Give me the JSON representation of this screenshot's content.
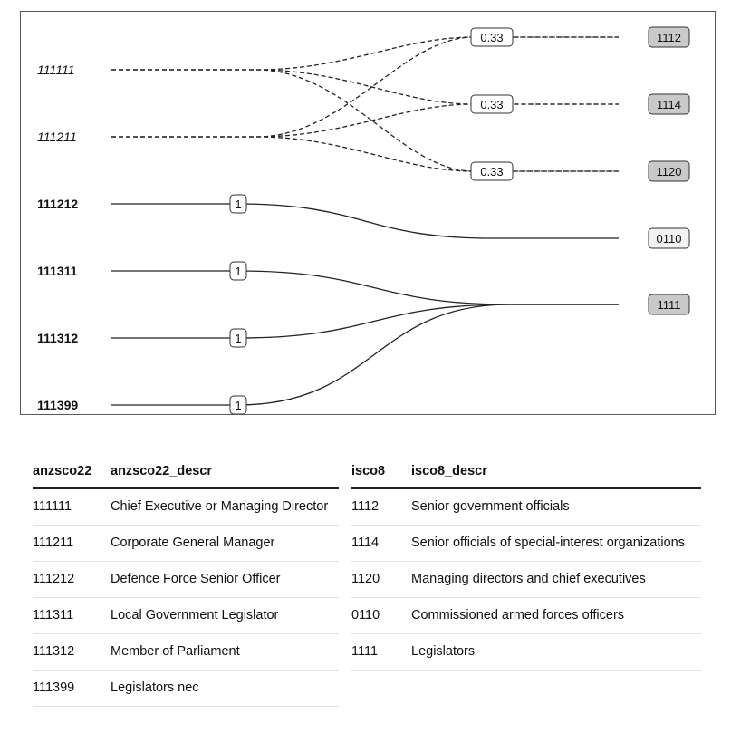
{
  "diagram": {
    "sources": [
      {
        "code": "111111",
        "style": "italic"
      },
      {
        "code": "111211",
        "style": "italic"
      },
      {
        "code": "111212",
        "style": "bold"
      },
      {
        "code": "111311",
        "style": "bold"
      },
      {
        "code": "111312",
        "style": "bold"
      },
      {
        "code": "111399",
        "style": "bold"
      }
    ],
    "targets": [
      {
        "code": "1112",
        "fill": "#c9c9c9"
      },
      {
        "code": "1114",
        "fill": "#c9c9c9"
      },
      {
        "code": "1120",
        "fill": "#c9c9c9"
      },
      {
        "code": "0110",
        "fill": "#f2f2f2"
      },
      {
        "code": "1111",
        "fill": "#c9c9c9"
      }
    ],
    "links": [
      {
        "source": "111111",
        "target": "1112",
        "weight": "0.33",
        "dashed": true
      },
      {
        "source": "111111",
        "target": "1114",
        "weight": "0.33",
        "dashed": true
      },
      {
        "source": "111111",
        "target": "1120",
        "weight": "0.33",
        "dashed": true
      },
      {
        "source": "111211",
        "target": "1112",
        "weight": "0.33",
        "dashed": true
      },
      {
        "source": "111211",
        "target": "1114",
        "weight": "0.33",
        "dashed": true
      },
      {
        "source": "111211",
        "target": "1120",
        "weight": "0.33",
        "dashed": true
      },
      {
        "source": "111212",
        "target": "0110",
        "weight": "1",
        "dashed": false
      },
      {
        "source": "111311",
        "target": "1111",
        "weight": "1",
        "dashed": false
      },
      {
        "source": "111312",
        "target": "1111",
        "weight": "1",
        "dashed": false
      },
      {
        "source": "111399",
        "target": "1111",
        "weight": "1",
        "dashed": false
      }
    ],
    "split_labels": [
      {
        "target": "1112",
        "text": "0.33"
      },
      {
        "target": "1114",
        "text": "0.33"
      },
      {
        "target": "1120",
        "text": "0.33"
      }
    ],
    "single_labels": [
      {
        "source": "111212",
        "text": "1"
      },
      {
        "source": "111311",
        "text": "1"
      },
      {
        "source": "111312",
        "text": "1"
      },
      {
        "source": "111399",
        "text": "1"
      }
    ]
  },
  "left_table": {
    "headers": [
      "anzsco22",
      "anzsco22_descr"
    ],
    "rows": [
      [
        "111111",
        "Chief Executive or Managing Director"
      ],
      [
        "111211",
        "Corporate General Manager"
      ],
      [
        "111212",
        "Defence Force Senior Officer"
      ],
      [
        "111311",
        "Local Government Legislator"
      ],
      [
        "111312",
        "Member of Parliament"
      ],
      [
        "111399",
        "Legislators nec"
      ]
    ]
  },
  "right_table": {
    "headers": [
      "isco8",
      "isco8_descr"
    ],
    "rows": [
      [
        "1112",
        "Senior government officials"
      ],
      [
        "1114",
        "Senior officials of special-interest organizations"
      ],
      [
        "1120",
        "Managing directors and chief executives"
      ],
      [
        "0110",
        "Commissioned armed forces officers"
      ],
      [
        "1111",
        "Legislators"
      ]
    ]
  }
}
